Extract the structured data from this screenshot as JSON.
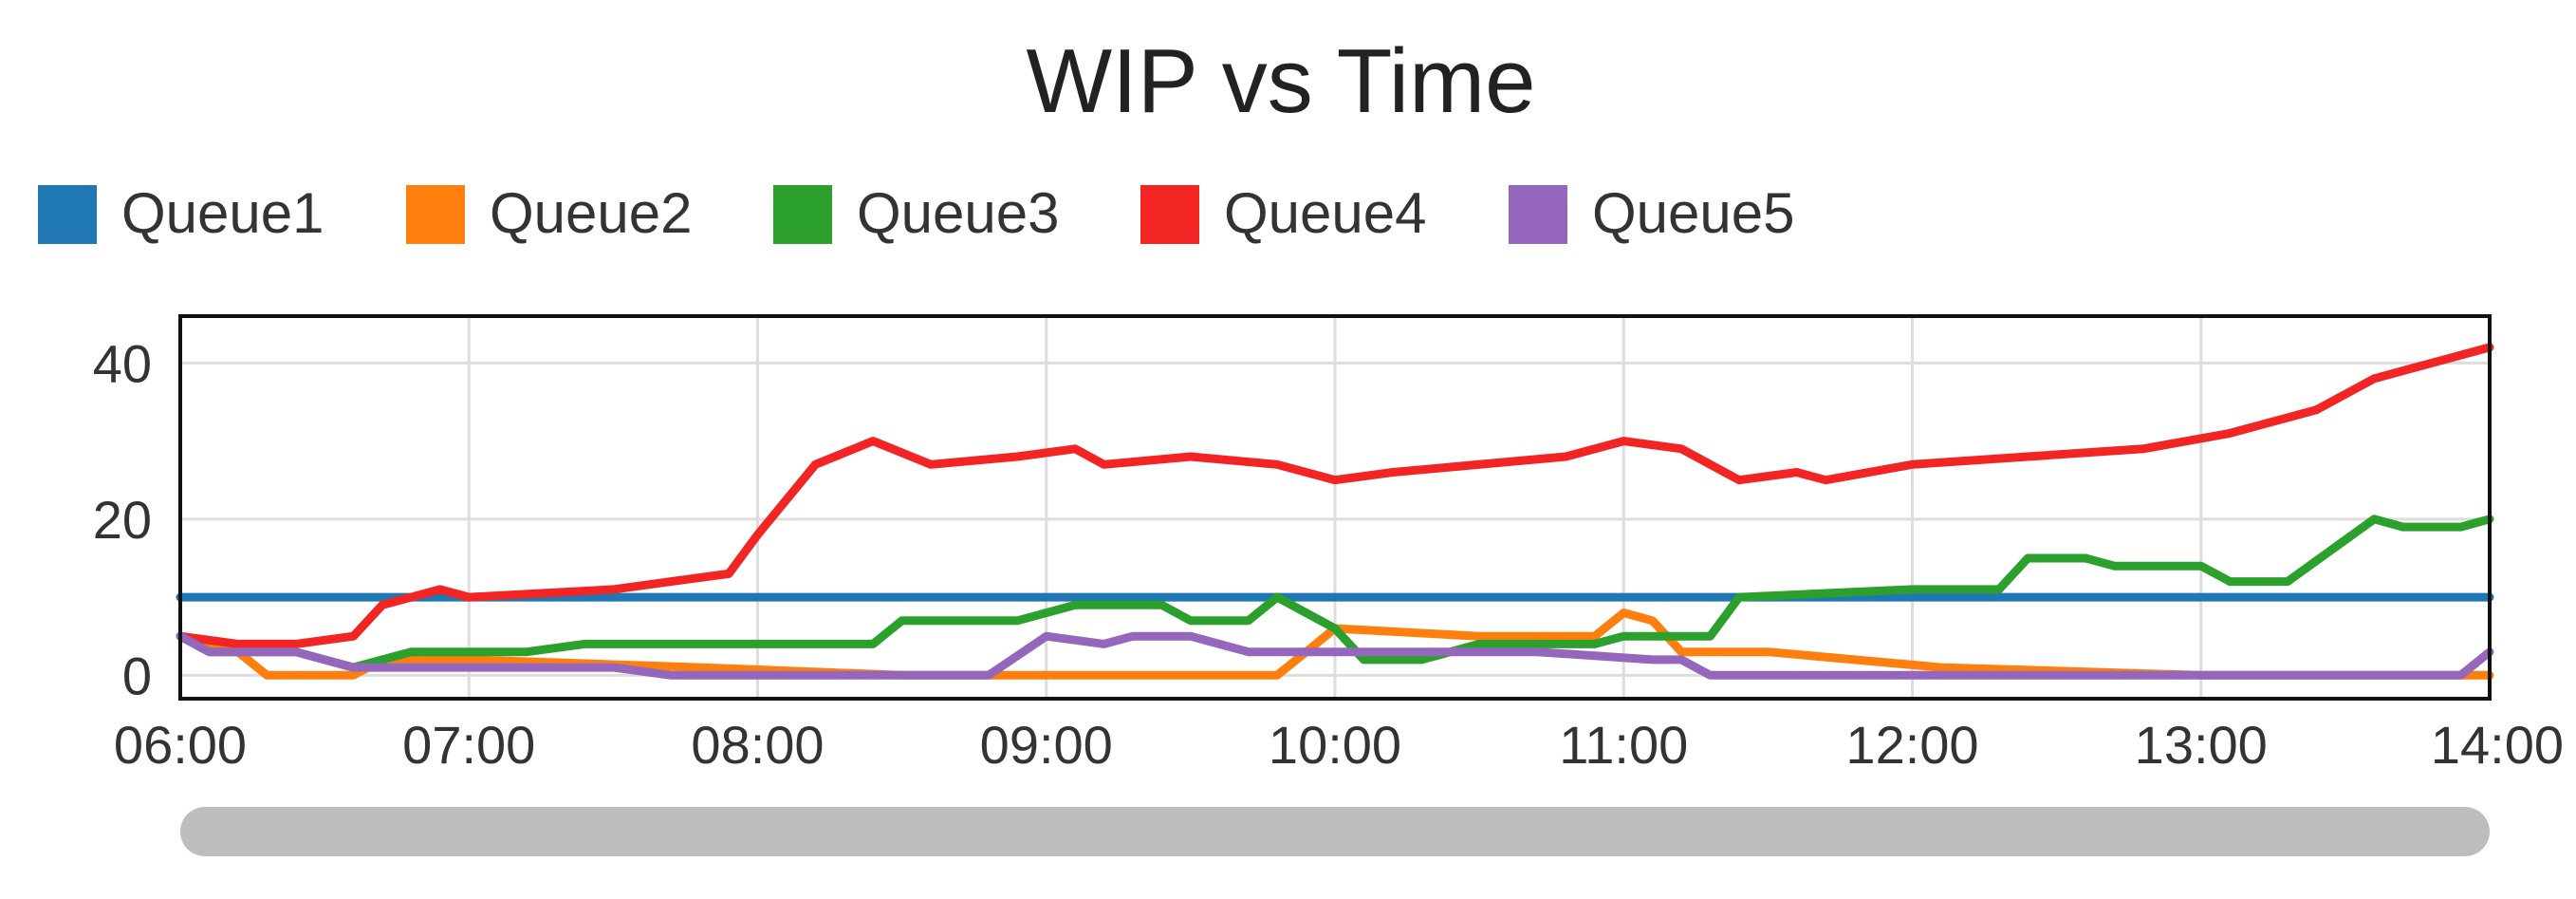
{
  "chart_data": {
    "type": "line",
    "title": "WIP vs Time",
    "xlabel": "",
    "ylabel": "",
    "x_ticks": [
      "06:00",
      "07:00",
      "08:00",
      "09:00",
      "10:00",
      "11:00",
      "12:00",
      "13:00",
      "14:00"
    ],
    "y_ticks": [
      0,
      20,
      40
    ],
    "xlim": [
      "06:00",
      "14:00"
    ],
    "ylim": [
      -3,
      46
    ],
    "grid": true,
    "legend_position": "top-left",
    "scrollbar": true,
    "series": [
      {
        "name": "Queue1",
        "color": "#1f77b4",
        "points": [
          [
            "06:00",
            10
          ],
          [
            "14:00",
            10
          ]
        ]
      },
      {
        "name": "Queue2",
        "color": "#ff7f0e",
        "points": [
          [
            "06:00",
            5
          ],
          [
            "06:12",
            3
          ],
          [
            "06:18",
            0
          ],
          [
            "06:36",
            0
          ],
          [
            "06:42",
            2
          ],
          [
            "07:00",
            2
          ],
          [
            "07:48",
            1
          ],
          [
            "08:30",
            0
          ],
          [
            "09:30",
            0
          ],
          [
            "09:48",
            0
          ],
          [
            "09:54",
            3
          ],
          [
            "10:00",
            6
          ],
          [
            "10:30",
            5
          ],
          [
            "10:54",
            5
          ],
          [
            "11:00",
            8
          ],
          [
            "11:06",
            7
          ],
          [
            "11:12",
            3
          ],
          [
            "11:30",
            3
          ],
          [
            "12:06",
            1
          ],
          [
            "13:00",
            0
          ],
          [
            "14:00",
            0
          ]
        ]
      },
      {
        "name": "Queue3",
        "color": "#2ca02c",
        "points": [
          [
            "06:00",
            5
          ],
          [
            "06:06",
            3
          ],
          [
            "06:24",
            3
          ],
          [
            "06:36",
            1
          ],
          [
            "06:48",
            3
          ],
          [
            "07:12",
            3
          ],
          [
            "07:24",
            4
          ],
          [
            "08:24",
            4
          ],
          [
            "08:30",
            7
          ],
          [
            "08:54",
            7
          ],
          [
            "09:06",
            9
          ],
          [
            "09:24",
            9
          ],
          [
            "09:30",
            7
          ],
          [
            "09:42",
            7
          ],
          [
            "09:48",
            10
          ],
          [
            "10:00",
            6
          ],
          [
            "10:06",
            2
          ],
          [
            "10:18",
            2
          ],
          [
            "10:30",
            4
          ],
          [
            "10:54",
            4
          ],
          [
            "11:00",
            5
          ],
          [
            "11:18",
            5
          ],
          [
            "11:24",
            10
          ],
          [
            "12:00",
            11
          ],
          [
            "12:18",
            11
          ],
          [
            "12:24",
            15
          ],
          [
            "12:36",
            15
          ],
          [
            "12:42",
            14
          ],
          [
            "13:00",
            14
          ],
          [
            "13:06",
            12
          ],
          [
            "13:18",
            12
          ],
          [
            "13:36",
            20
          ],
          [
            "13:42",
            19
          ],
          [
            "13:54",
            19
          ],
          [
            "14:00",
            20
          ]
        ]
      },
      {
        "name": "Queue4",
        "color": "#f22424",
        "points": [
          [
            "06:00",
            5
          ],
          [
            "06:12",
            4
          ],
          [
            "06:24",
            4
          ],
          [
            "06:36",
            5
          ],
          [
            "06:42",
            9
          ],
          [
            "06:54",
            11
          ],
          [
            "07:00",
            10
          ],
          [
            "07:30",
            11
          ],
          [
            "07:42",
            12
          ],
          [
            "07:54",
            13
          ],
          [
            "08:00",
            18
          ],
          [
            "08:12",
            27
          ],
          [
            "08:24",
            30
          ],
          [
            "08:36",
            27
          ],
          [
            "08:54",
            28
          ],
          [
            "09:06",
            29
          ],
          [
            "09:12",
            27
          ],
          [
            "09:30",
            28
          ],
          [
            "09:48",
            27
          ],
          [
            "10:00",
            25
          ],
          [
            "10:12",
            26
          ],
          [
            "10:48",
            28
          ],
          [
            "11:00",
            30
          ],
          [
            "11:12",
            29
          ],
          [
            "11:24",
            25
          ],
          [
            "11:36",
            26
          ],
          [
            "11:42",
            25
          ],
          [
            "12:00",
            27
          ],
          [
            "12:24",
            28
          ],
          [
            "12:48",
            29
          ],
          [
            "13:06",
            31
          ],
          [
            "13:24",
            34
          ],
          [
            "13:36",
            38
          ],
          [
            "13:48",
            40
          ],
          [
            "14:00",
            42
          ]
        ]
      },
      {
        "name": "Queue5",
        "color": "#9467bd",
        "points": [
          [
            "06:00",
            5
          ],
          [
            "06:06",
            3
          ],
          [
            "06:24",
            3
          ],
          [
            "06:36",
            1
          ],
          [
            "06:54",
            1
          ],
          [
            "07:30",
            1
          ],
          [
            "07:42",
            0
          ],
          [
            "08:48",
            0
          ],
          [
            "09:00",
            5
          ],
          [
            "09:12",
            4
          ],
          [
            "09:18",
            5
          ],
          [
            "09:30",
            5
          ],
          [
            "09:42",
            3
          ],
          [
            "10:12",
            3
          ],
          [
            "10:42",
            3
          ],
          [
            "11:06",
            2
          ],
          [
            "11:12",
            2
          ],
          [
            "11:18",
            0
          ],
          [
            "12:00",
            0
          ],
          [
            "13:54",
            0
          ],
          [
            "14:00",
            3
          ]
        ]
      }
    ]
  }
}
